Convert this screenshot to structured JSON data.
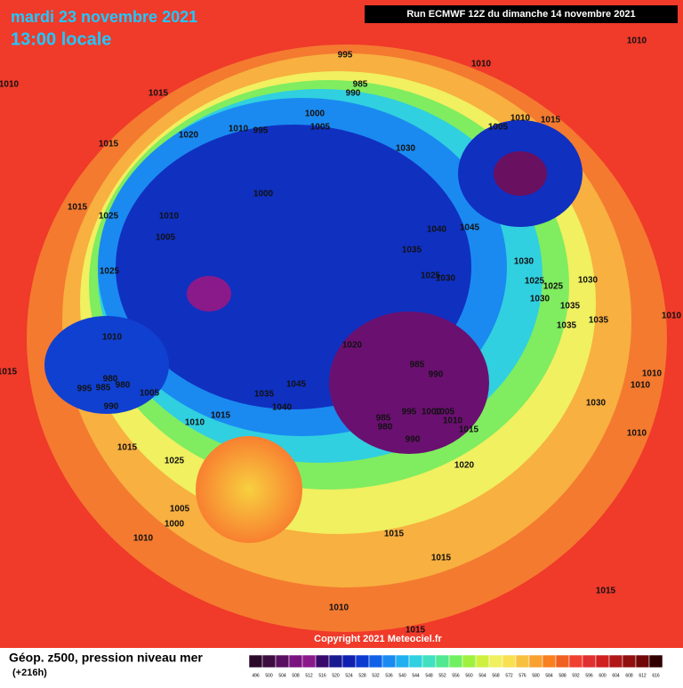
{
  "header": {
    "date": "mardi 23 novembre 2021",
    "time": "13:00 locale",
    "run": "Run ECMWF 12Z du dimanche 14 novembre 2021"
  },
  "footer": {
    "title": "Géop. z500, pression niveau mer",
    "lead": "(+216h)",
    "copyright": "Copyright 2021 Meteociel.fr"
  },
  "colorbar": {
    "values": [
      496,
      500,
      504,
      508,
      512,
      516,
      520,
      524,
      528,
      532,
      536,
      540,
      544,
      548,
      552,
      556,
      560,
      564,
      568,
      572,
      576,
      580,
      584,
      588,
      592,
      596,
      600,
      604,
      608,
      612,
      616
    ],
    "colors": [
      "#2a0a2a",
      "#3d0d40",
      "#5a1060",
      "#7a1280",
      "#8a1a8a",
      "#3a0a6a",
      "#1a1a90",
      "#1020b0",
      "#0a3ad0",
      "#1060e8",
      "#1a8af0",
      "#20b0f0",
      "#30d0e0",
      "#40e0c0",
      "#50e890",
      "#70f060",
      "#a0f040",
      "#d0f040",
      "#f0f060",
      "#f8e050",
      "#f8c040",
      "#f8a030",
      "#f88020",
      "#f06020",
      "#f04030",
      "#e03030",
      "#d02020",
      "#b01818",
      "#901010",
      "#700808",
      "#300000"
    ]
  },
  "map": {
    "pressure_labels": [
      1010,
      1010,
      1010,
      1015,
      995,
      985,
      990,
      1015,
      1020,
      1010,
      995,
      1000,
      1005,
      1030,
      1010,
      1015,
      1005,
      1015,
      1025,
      1010,
      1005,
      1000,
      1040,
      1045,
      1035,
      1030,
      1025,
      1025,
      1030,
      1025,
      1025,
      1030,
      1030,
      1035,
      1010,
      1020,
      1035,
      1010,
      1035,
      985,
      990,
      1015,
      980,
      985,
      995,
      980,
      1005,
      990,
      1045,
      1035,
      1040,
      1015,
      1010,
      1010,
      1010,
      1030,
      1010,
      985,
      980,
      995,
      1000,
      1005,
      990,
      1010,
      1015,
      1015,
      1025,
      1020,
      1005,
      1000,
      1010,
      1015,
      1015,
      1015,
      1010,
      1015
    ]
  }
}
